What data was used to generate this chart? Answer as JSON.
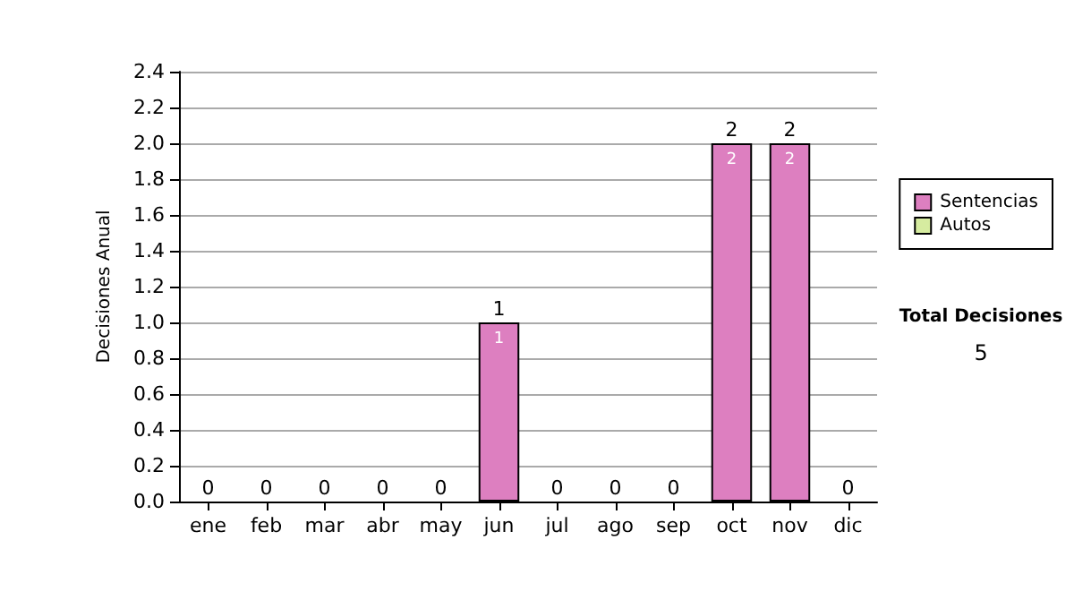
{
  "chart_data": {
    "type": "bar",
    "ylabel": "Decisiones Anual",
    "categories": [
      "ene",
      "feb",
      "mar",
      "abr",
      "may",
      "jun",
      "jul",
      "ago",
      "sep",
      "oct",
      "nov",
      "dic"
    ],
    "series": [
      {
        "name": "Sentencias",
        "color": "#dd7fc0",
        "values": [
          0,
          0,
          0,
          0,
          0,
          1,
          0,
          0,
          0,
          2,
          2,
          0
        ],
        "value_labels": [
          null,
          null,
          null,
          null,
          null,
          "1",
          null,
          null,
          null,
          "2",
          "2",
          null
        ]
      },
      {
        "name": "Autos",
        "color": "#d6eca0",
        "values": [
          0,
          0,
          0,
          0,
          0,
          0,
          0,
          0,
          0,
          0,
          0,
          0
        ]
      }
    ],
    "stacked": true,
    "totals": [
      "0",
      "0",
      "0",
      "0",
      "0",
      "1",
      "0",
      "0",
      "0",
      "2",
      "2",
      "0"
    ],
    "ylim": [
      0,
      2.4
    ],
    "yticks": [
      {
        "value": 0,
        "label": "0.0"
      },
      {
        "value": 0.2,
        "label": "0.2"
      },
      {
        "value": 0.4,
        "label": "0.4"
      },
      {
        "value": 0.6,
        "label": "0.6"
      },
      {
        "value": 0.8,
        "label": "0.8"
      },
      {
        "value": 1,
        "label": "1.0"
      },
      {
        "value": 1.2,
        "label": "1.2"
      },
      {
        "value": 1.4,
        "label": "1.4"
      },
      {
        "value": 1.6,
        "label": "1.6"
      },
      {
        "value": 1.8,
        "label": "1.8"
      },
      {
        "value": 2,
        "label": "2.0"
      },
      {
        "value": 2.2,
        "label": "2.2"
      },
      {
        "value": 2.4,
        "label": "2.4"
      }
    ],
    "grid": "y",
    "legend": "right",
    "annotations": [
      "Total Decisiones",
      "5"
    ]
  }
}
